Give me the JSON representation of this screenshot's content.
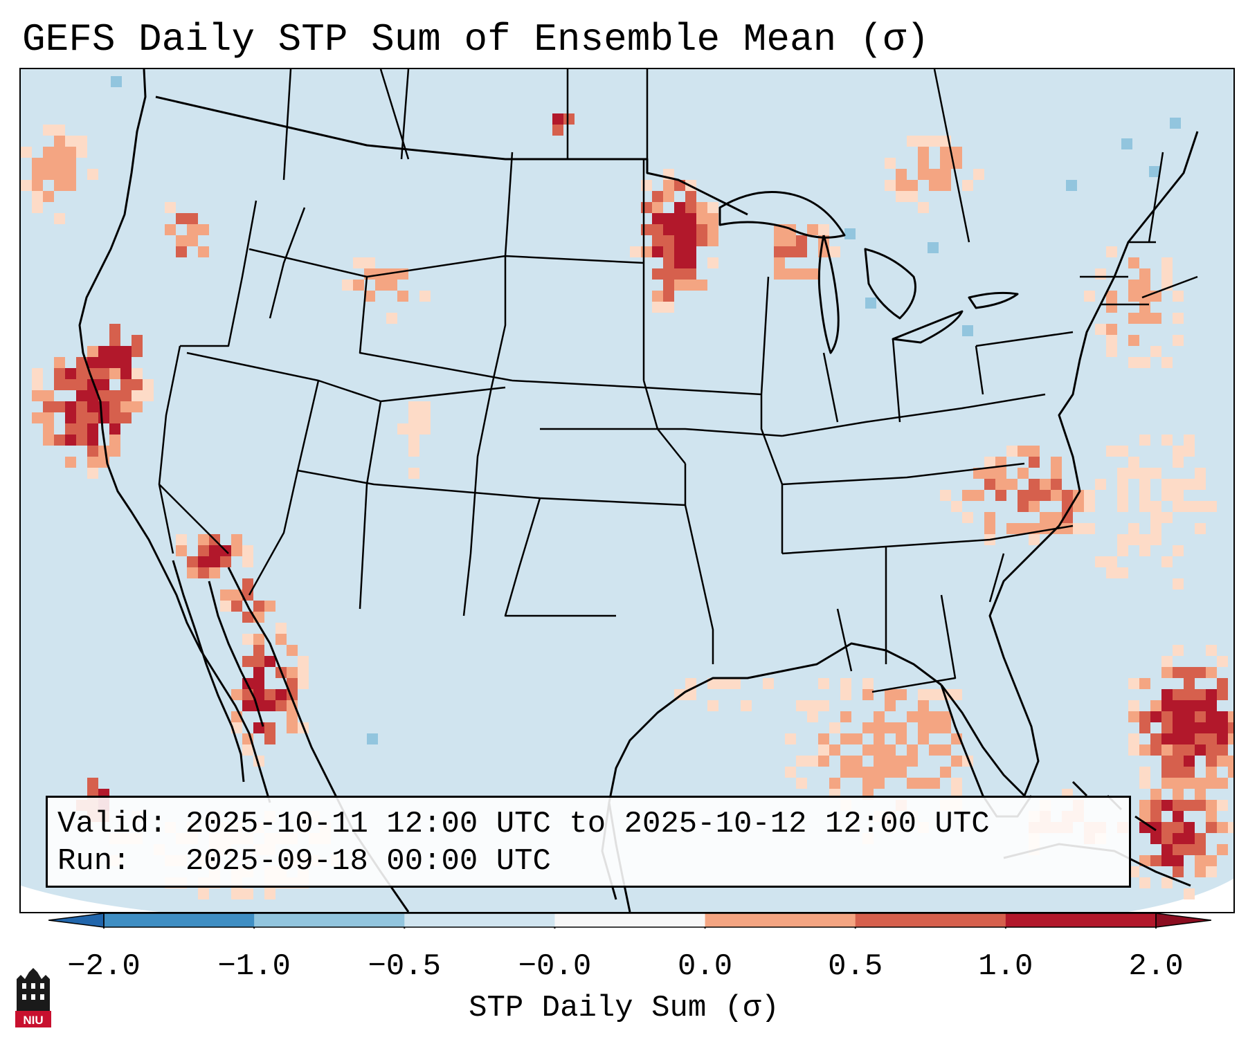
{
  "title": "GEFS Daily STP Sum of Ensemble Mean (σ)",
  "info": {
    "valid_label": "Valid:",
    "valid_value": "2025-10-11 12:00 UTC to 2025-10-12 12:00 UTC",
    "run_label": "Run:",
    "run_value": "2025-09-18 00:00 UTC"
  },
  "colorbar": {
    "label": "STP Daily Sum (σ)",
    "ticks": [
      "−2.0",
      "−1.0",
      "−0.5",
      "−0.0",
      "0.0",
      "0.5",
      "1.0",
      "2.0"
    ],
    "colors": [
      "#3f8ec3",
      "#92c5de",
      "#d1e5f0",
      "#f7f7f7",
      "#fddbc7",
      "#f4a582",
      "#d6604d",
      "#b2182b"
    ],
    "under_color": "#2166ac",
    "over_color": "#8b0d20"
  },
  "logo": {
    "text": "NIU",
    "icon": "niu-castle-icon"
  },
  "map": {
    "background_color": "#d1e5f0",
    "outside_color": "#ffffff"
  }
}
